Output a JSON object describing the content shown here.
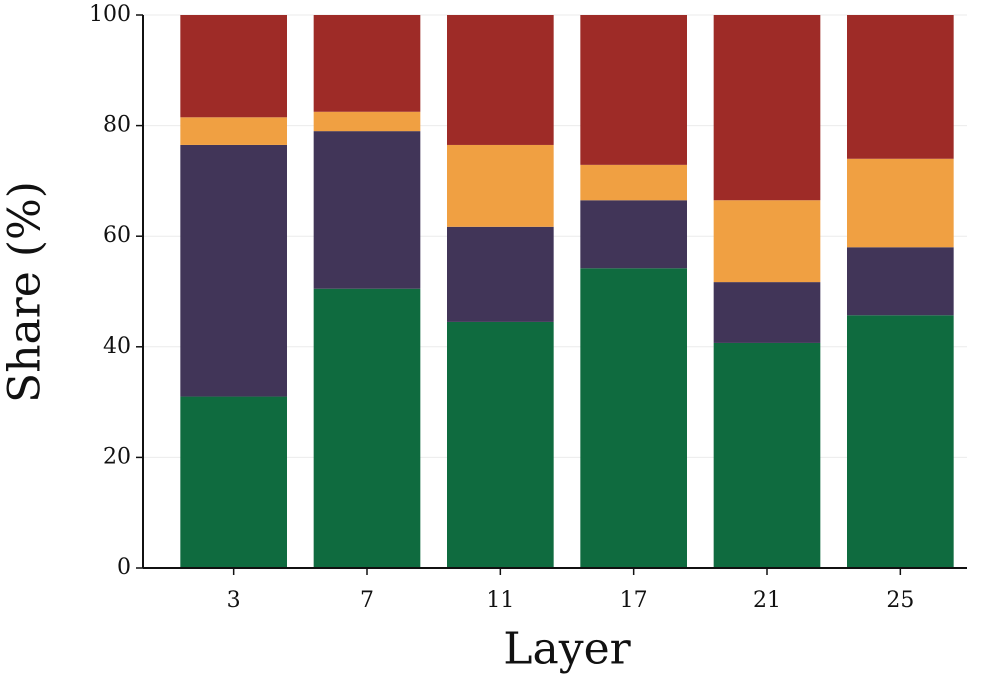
{
  "chart_data": {
    "type": "stacked_bar",
    "xlabel": "Layer",
    "ylabel": "Share (%)",
    "categories": [
      "3",
      "7",
      "11",
      "17",
      "21",
      "25"
    ],
    "series": [
      {
        "color": "#0f6b3f",
        "values": [
          31,
          50.5,
          44.5,
          54.2,
          40.7,
          45.7
        ]
      },
      {
        "color": "#413558",
        "values": [
          45.5,
          28.5,
          17.2,
          12.3,
          11,
          12.3
        ]
      },
      {
        "color": "#f0a042",
        "values": [
          5,
          3.5,
          14.8,
          6.4,
          14.8,
          16
        ]
      },
      {
        "color": "#9e2b27",
        "values": [
          18.5,
          17.5,
          23.5,
          27.1,
          33.5,
          26
        ]
      }
    ],
    "ylim": [
      0,
      100
    ],
    "yticks": [
      0,
      20,
      40,
      60,
      80,
      100
    ],
    "grid": true
  }
}
